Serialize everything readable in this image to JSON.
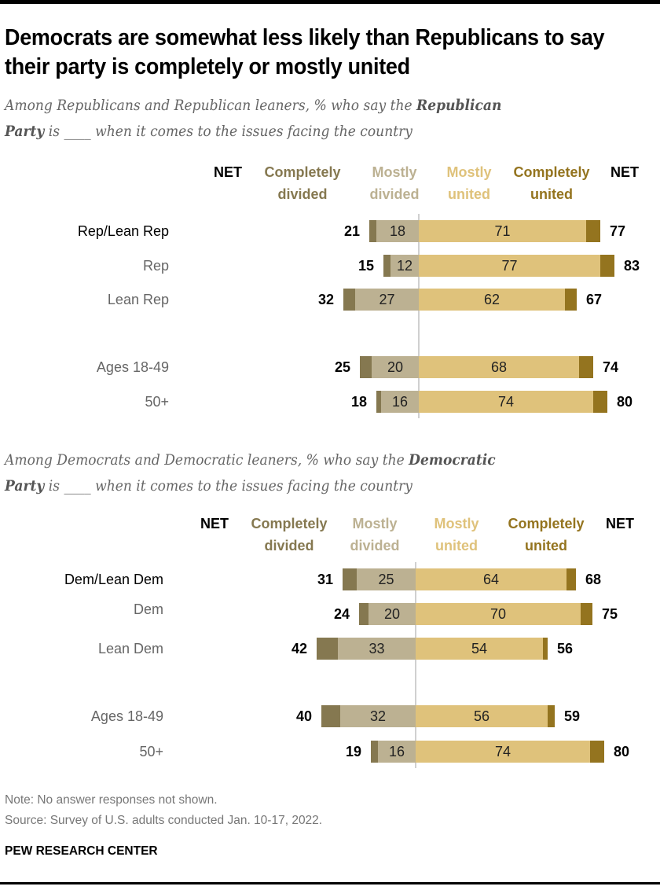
{
  "title": "Democrats are somewhat less likely than Republicans to say their party is completely or mostly united",
  "colors": {
    "completely_divided": "#857850",
    "mostly_divided": "#bcb192",
    "mostly_united": "#dfc27b",
    "completely_united": "#94741f"
  },
  "chart_data": [
    {
      "type": "bar",
      "orientation": "diverging-stacked-horizontal",
      "subtitle": {
        "pre": "Among Republicans  and Republican  leaners, % who say the ",
        "bold1": "Republican",
        "mid": "",
        "bold2": "Party",
        "post": " is ____  when it comes to the issues facing the country"
      },
      "headers": {
        "net_left": "NET",
        "completely_divided": "Completely divided",
        "mostly_divided": "Mostly divided",
        "mostly_united": "Mostly united",
        "completely_united": "Completely united",
        "net_right": "NET"
      },
      "categories": [
        "Rep/Lean Rep",
        "Rep",
        "Lean Rep",
        "Ages 18-49",
        "50+"
      ],
      "series": [
        {
          "name": "Completely divided",
          "values": [
            3,
            3,
            5,
            5,
            2
          ]
        },
        {
          "name": "Mostly divided",
          "values": [
            18,
            12,
            27,
            20,
            16
          ]
        },
        {
          "name": "Mostly united",
          "values": [
            71,
            77,
            62,
            68,
            74
          ]
        },
        {
          "name": "Completely united",
          "values": [
            6,
            6,
            5,
            6,
            6
          ]
        }
      ],
      "net_divided": [
        21,
        15,
        32,
        25,
        18
      ],
      "net_united": [
        77,
        83,
        67,
        74,
        80
      ]
    },
    {
      "type": "bar",
      "orientation": "diverging-stacked-horizontal",
      "subtitle": {
        "pre": "Among Democrats and Democratic  leaners, % who say the ",
        "bold1": "Democratic",
        "mid": "",
        "bold2": "Party",
        "post": " is ____  when it comes to the issues facing the country"
      },
      "headers": {
        "net_left": "NET",
        "completely_divided": "Completely divided",
        "mostly_divided": "Mostly divided",
        "mostly_united": "Mostly united",
        "completely_united": "Completely united",
        "net_right": "NET"
      },
      "categories": [
        "Dem/Lean Dem",
        "Dem",
        "Lean Dem",
        "Ages 18-49",
        "50+"
      ],
      "series": [
        {
          "name": "Completely divided",
          "values": [
            6,
            4,
            9,
            8,
            3
          ]
        },
        {
          "name": "Mostly divided",
          "values": [
            25,
            20,
            33,
            32,
            16
          ]
        },
        {
          "name": "Mostly united",
          "values": [
            64,
            70,
            54,
            56,
            74
          ]
        },
        {
          "name": "Completely united",
          "values": [
            4,
            5,
            2,
            3,
            6
          ]
        }
      ],
      "net_divided": [
        31,
        24,
        42,
        40,
        19
      ],
      "net_united": [
        68,
        75,
        56,
        59,
        80
      ]
    }
  ],
  "note": "Note: No answer responses not shown.",
  "source": "Source: Survey of U.S. adults conducted Jan. 10-17, 2022.",
  "logo": "PEW RESEARCH CENTER"
}
